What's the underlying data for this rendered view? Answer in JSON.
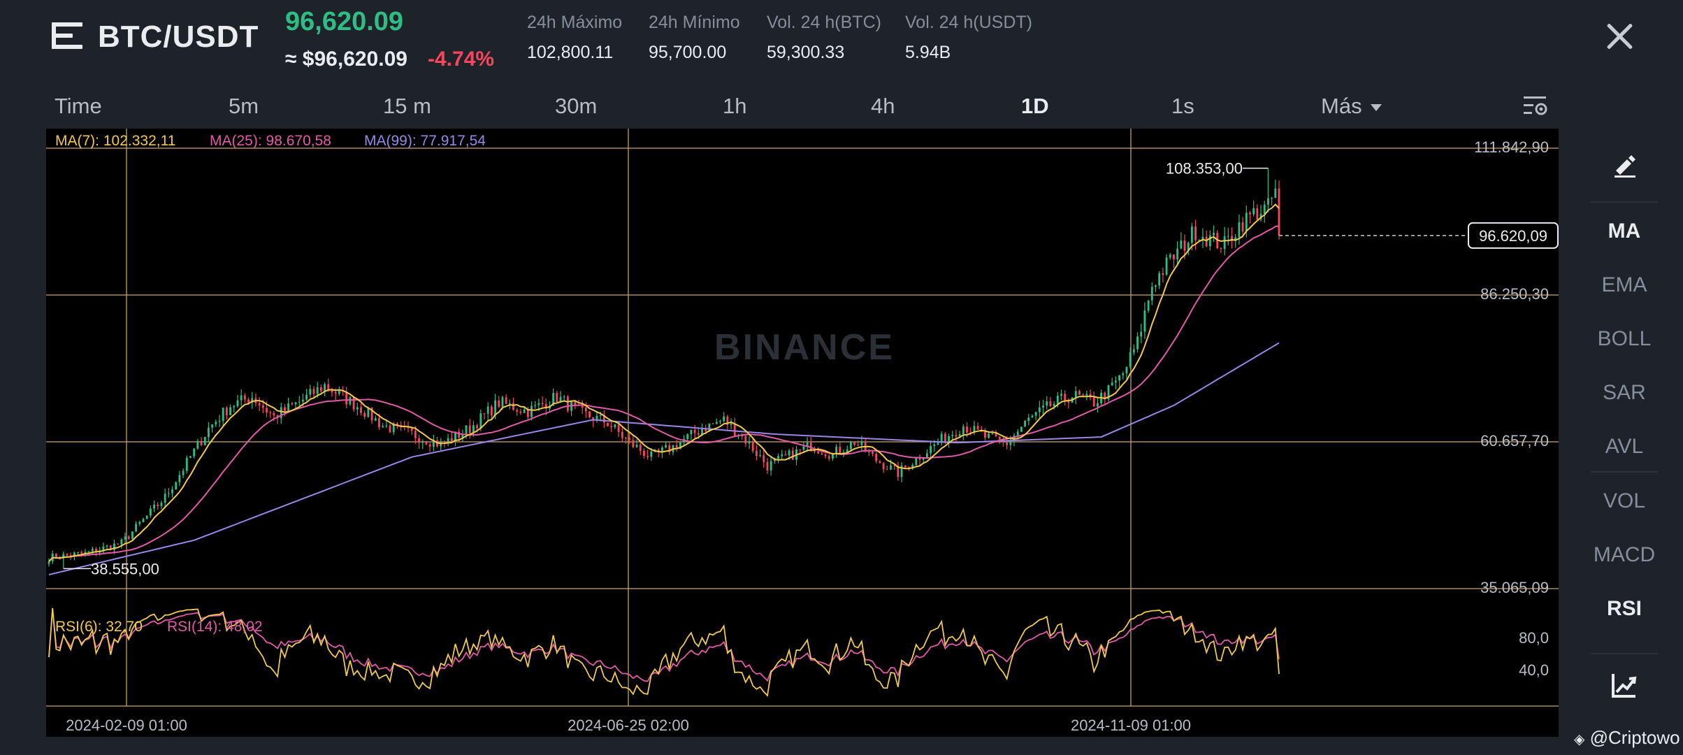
{
  "header": {
    "pair": "BTC/USDT",
    "last_price": "96,620.09",
    "approx_price": "≈ $96,620.09",
    "change_pct": "-4.74%",
    "stats": [
      {
        "label": "24h Máximo",
        "value": "102,800.11"
      },
      {
        "label": "24h Mínimo",
        "value": "95,700.00"
      },
      {
        "label": "Vol. 24 h(BTC)",
        "value": "59,300.33"
      },
      {
        "label": "Vol. 24 h(USDT)",
        "value": "5.94B"
      }
    ]
  },
  "timeframes": [
    "Time",
    "5m",
    "15 m",
    "30m",
    "1h",
    "4h",
    "1D",
    "1s"
  ],
  "active_timeframe": "1D",
  "more_label": "Más",
  "indicators_side": [
    "MA",
    "EMA",
    "BOLL",
    "SAR",
    "AVL",
    "VOL",
    "MACD",
    "RSI"
  ],
  "active_indicators": [
    "MA",
    "RSI"
  ],
  "watermark": "BINANCE",
  "credit": "@Criptowo",
  "colors": {
    "up": "#2ebd85",
    "down": "#f6465d",
    "ma7": "#f0c94d",
    "ma25": "#e05aa8",
    "ma99": "#9b86e6",
    "grid": "#c9a46a",
    "bg": "#000000",
    "panel": "#1e2329"
  },
  "chart_data": {
    "type": "candlestick",
    "timeframe": "1D",
    "ma_legend": [
      {
        "name": "MA(7)",
        "value": "102.332,11"
      },
      {
        "name": "MA(25)",
        "value": "98.670,58"
      },
      {
        "name": "MA(99)",
        "value": "77.917,54"
      }
    ],
    "price_axis_labels": [
      "111.842,90",
      "86.250,30",
      "60.657,70",
      "35.065,09"
    ],
    "price_axis_values": [
      111842.9,
      86250.3,
      60657.7,
      35065.09
    ],
    "current_price_label": "96.620,09",
    "current_price": 96620.09,
    "high_annotation": "108.353,00",
    "high_value": 108353.0,
    "low_annotation": "38.555,00",
    "low_value": 38555.0,
    "x_labels": [
      "2024-02-09 01:00",
      "2024-06-25 02:00",
      "2024-11-09 01:00"
    ],
    "price_keypoints": [
      [
        0,
        40500
      ],
      [
        10,
        41200
      ],
      [
        20,
        43000
      ],
      [
        26,
        47000
      ],
      [
        32,
        51000
      ],
      [
        38,
        57000
      ],
      [
        44,
        63000
      ],
      [
        50,
        67000
      ],
      [
        56,
        68500
      ],
      [
        62,
        65000
      ],
      [
        70,
        68000
      ],
      [
        76,
        70500
      ],
      [
        86,
        66500
      ],
      [
        92,
        63500
      ],
      [
        100,
        62000
      ],
      [
        108,
        60200
      ],
      [
        116,
        63000
      ],
      [
        124,
        67500
      ],
      [
        132,
        66000
      ],
      [
        140,
        68500
      ],
      [
        146,
        65800
      ],
      [
        154,
        64000
      ],
      [
        160,
        60500
      ],
      [
        166,
        58000
      ],
      [
        172,
        59800
      ],
      [
        180,
        63000
      ],
      [
        186,
        64500
      ],
      [
        192,
        61000
      ],
      [
        198,
        56500
      ],
      [
        204,
        58200
      ],
      [
        210,
        60000
      ],
      [
        216,
        58500
      ],
      [
        222,
        60700
      ],
      [
        228,
        57500
      ],
      [
        234,
        55200
      ],
      [
        240,
        58200
      ],
      [
        246,
        61000
      ],
      [
        252,
        63500
      ],
      [
        258,
        61500
      ],
      [
        264,
        60400
      ],
      [
        270,
        64500
      ],
      [
        276,
        67000
      ],
      [
        282,
        68800
      ],
      [
        288,
        67500
      ],
      [
        292,
        69500
      ],
      [
        296,
        72500
      ],
      [
        300,
        78000
      ],
      [
        304,
        88000
      ],
      [
        308,
        91500
      ],
      [
        312,
        94500
      ],
      [
        316,
        97500
      ],
      [
        320,
        96000
      ],
      [
        324,
        95000
      ],
      [
        328,
        98500
      ],
      [
        332,
        100500
      ],
      [
        336,
        101500
      ],
      [
        338,
        104500
      ],
      [
        339,
        96620
      ]
    ],
    "ma99_keypoints": [
      [
        0,
        37500
      ],
      [
        40,
        43500
      ],
      [
        100,
        58000
      ],
      [
        150,
        64500
      ],
      [
        200,
        62000
      ],
      [
        250,
        60500
      ],
      [
        290,
        61500
      ],
      [
        310,
        67000
      ],
      [
        339,
        77900
      ]
    ],
    "rsi": {
      "legend": [
        {
          "name": "RSI(6)",
          "value": "32,70"
        },
        {
          "name": "RSI(14)",
          "value": "48,02"
        }
      ],
      "axis_labels": [
        "80,0",
        "40,0"
      ],
      "levels": [
        80,
        40
      ],
      "rsi6_last": 32.7,
      "rsi14_last": 48.02
    }
  }
}
